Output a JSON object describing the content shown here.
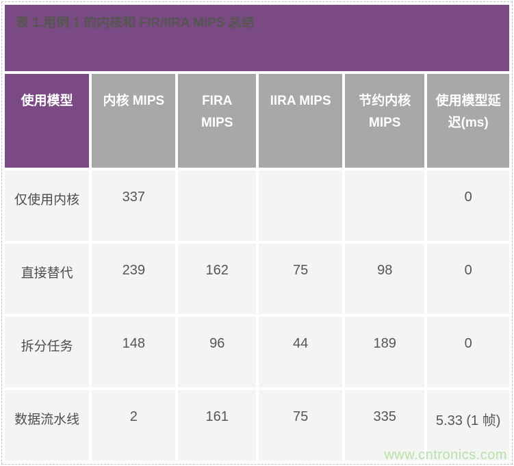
{
  "banner": {
    "title": "表 1.用例 1 的内核和 FIR/IIRA MIPS 总结"
  },
  "chart_data": {
    "type": "table",
    "title": "表 1.用例 1 的内核和 FIR/IIRA MIPS 总结",
    "columns": [
      "使用模型",
      "内核 MIPS",
      "FIRA MIPS",
      "IIRA MIPS",
      "节约内核 MIPS",
      "使用模型延迟(ms)"
    ],
    "rows": [
      [
        "仅使用内核",
        "337",
        "",
        "",
        "",
        "0"
      ],
      [
        "直接替代",
        "239",
        "162",
        "75",
        "98",
        "0"
      ],
      [
        "拆分任务",
        "148",
        "96",
        "44",
        "189",
        "0"
      ],
      [
        "数据流水线",
        "2",
        "161",
        "75",
        "335",
        "5.33 (1 帧)"
      ]
    ]
  },
  "colors": {
    "banner_purple": "#7b4a85",
    "header_gray": "#a9a8a9",
    "cell_background": "#f5f4f4",
    "title_text": "#55564f",
    "cell_text": "#555555",
    "watermark_green": "#b5e2a7"
  },
  "watermark": {
    "text": "www.cntronics.com"
  }
}
